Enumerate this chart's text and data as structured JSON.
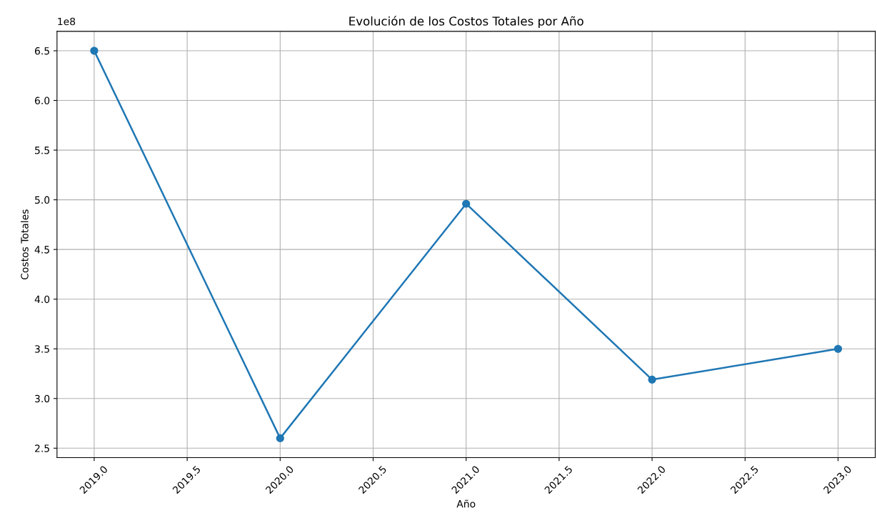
{
  "chart_data": {
    "type": "line",
    "title": "Evolución de los Costos Totales por Año",
    "xlabel": "Año",
    "ylabel": "Costos Totales",
    "x": [
      2019,
      2020,
      2021,
      2022,
      2023
    ],
    "series": [
      {
        "color": "#1f77b4",
        "values": [
          6.5,
          2.6,
          4.96,
          3.19,
          3.5
        ]
      }
    ],
    "xlim": [
      2018.8,
      2023.2
    ],
    "xticks": [
      {
        "value": 2019,
        "label": "2019.0"
      },
      {
        "value": 2019.5,
        "label": "2019.5"
      },
      {
        "value": 2020,
        "label": "2020.0"
      },
      {
        "value": 2020.5,
        "label": "2020.5"
      },
      {
        "value": 2021,
        "label": "2021.0"
      },
      {
        "value": 2021.5,
        "label": "2021.5"
      },
      {
        "value": 2022,
        "label": "2022.0"
      },
      {
        "value": 2022.5,
        "label": "2022.5"
      },
      {
        "value": 2023,
        "label": "2023.0"
      }
    ],
    "ylim": [
      2.405,
      6.695
    ],
    "yticks": [
      2.5,
      {
        "value": 3,
        "label": "3.0"
      },
      3.5,
      {
        "value": 4,
        "label": "4.0"
      },
      4.5,
      {
        "value": 5,
        "label": "5.0"
      },
      5.5,
      {
        "value": 6,
        "label": "6.0"
      },
      6.5
    ],
    "annotations": [
      "1e8"
    ],
    "grid": true,
    "marker": "circle",
    "line_style": "solid"
  }
}
